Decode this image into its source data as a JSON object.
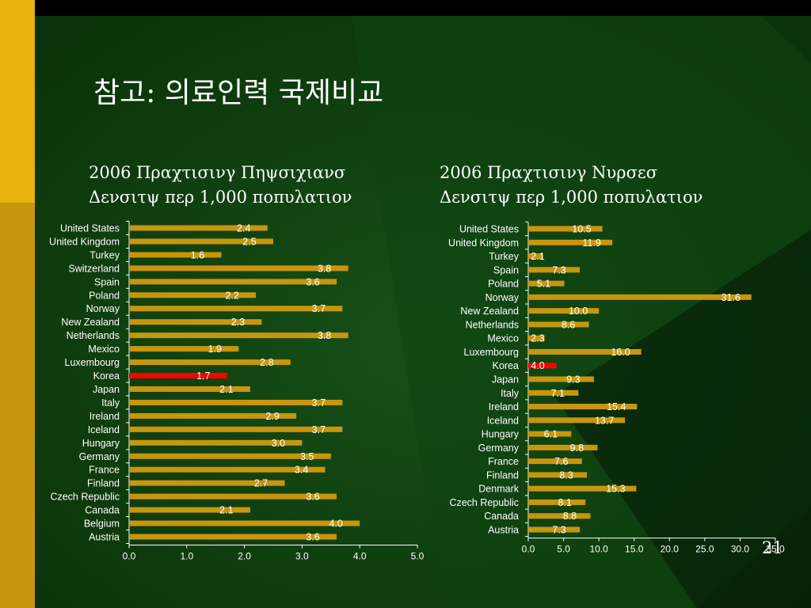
{
  "slide": {
    "title": "참고: 의료인력 국제비교",
    "page_number": "21"
  },
  "colors": {
    "bar": "#C8960E",
    "highlight": "#FF0000",
    "text": "#FFFFFF",
    "axis": "#FFFFFF",
    "background_green": "#0B3A0B",
    "left_strip": "#E8B30C"
  },
  "chart_data": [
    {
      "type": "bar",
      "orientation": "horizontal",
      "title_line1": "2006 Πραχτισινγ Πηψσιχιανσ",
      "title_line2": "Δενσιτψ περ 1,000 πoπυλατιoν",
      "categories": [
        "United States",
        "United Kingdom",
        "Turkey",
        "Switzerland",
        "Spain",
        "Poland",
        "Norway",
        "New Zealand",
        "Netherlands",
        "Mexico",
        "Luxembourg",
        "Korea",
        "Japan",
        "Italy",
        "Ireland",
        "Iceland",
        "Hungary",
        "Germany",
        "France",
        "Finland",
        "Czech Republic",
        "Canada",
        "Belgium",
        "Austria"
      ],
      "values": [
        2.4,
        2.5,
        1.6,
        3.8,
        3.6,
        2.2,
        3.7,
        2.3,
        3.8,
        1.9,
        2.8,
        1.7,
        2.1,
        3.7,
        2.9,
        3.7,
        3.0,
        3.5,
        3.4,
        2.7,
        3.6,
        2.1,
        4.0,
        3.6
      ],
      "value_labels": [
        "2.4",
        "2.5",
        "1.6",
        "3.8",
        "3.6",
        "2.2",
        "3.7",
        "2.3",
        "3.8",
        "1.9",
        "2.8",
        "1.7",
        "2.1",
        "3.7",
        "2.9",
        "3.7",
        "3.0",
        "3.5",
        "3.4",
        "2.7",
        "3.6",
        "2.1",
        "4.0",
        "3.6"
      ],
      "highlight": "Korea",
      "xlim": [
        0,
        5
      ],
      "xticks": [
        "0.0",
        "1.0",
        "2.0",
        "3.0",
        "4.0",
        "5.0"
      ],
      "grid": false,
      "legend": "none"
    },
    {
      "type": "bar",
      "orientation": "horizontal",
      "title_line1": "2006 Πραχτισινγ Νυρσεσ",
      "title_line2": "Δενσιτψ περ 1,000 πoπυλατιoν",
      "categories": [
        "United States",
        "United Kingdom",
        "Turkey",
        "Spain",
        "Poland",
        "Norway",
        "New Zealand",
        "Netherlands",
        "Mexico",
        "Luxembourg",
        "Korea",
        "Japan",
        "Italy",
        "Ireland",
        "Iceland",
        "Hungary",
        "Germany",
        "France",
        "Finland",
        "Denmark",
        "Czech Republic",
        "Canada",
        "Austria"
      ],
      "values": [
        10.5,
        11.9,
        2.1,
        7.3,
        5.1,
        31.6,
        10.0,
        8.6,
        2.3,
        16.0,
        4.0,
        9.3,
        7.1,
        15.4,
        13.7,
        6.1,
        9.8,
        7.6,
        8.3,
        15.3,
        8.1,
        8.8,
        7.3
      ],
      "value_labels": [
        "10.5",
        "11.9",
        "2.1",
        "7.3",
        "5.1",
        "31.6",
        "10.0",
        "8.6",
        "2.3",
        "16.0",
        "4.0",
        "9.3",
        "7.1",
        "15.4",
        "13.7",
        "6.1",
        "9.8",
        "7.6",
        "8.3",
        "15.3",
        "8.1",
        "8.8",
        "7.3"
      ],
      "highlight": "Korea",
      "xlim": [
        0,
        35
      ],
      "xticks": [
        "0.0",
        "5.0",
        "10.0",
        "15.0",
        "20.0",
        "25.0",
        "30.0",
        "35.0"
      ],
      "grid": false,
      "legend": "none"
    }
  ]
}
